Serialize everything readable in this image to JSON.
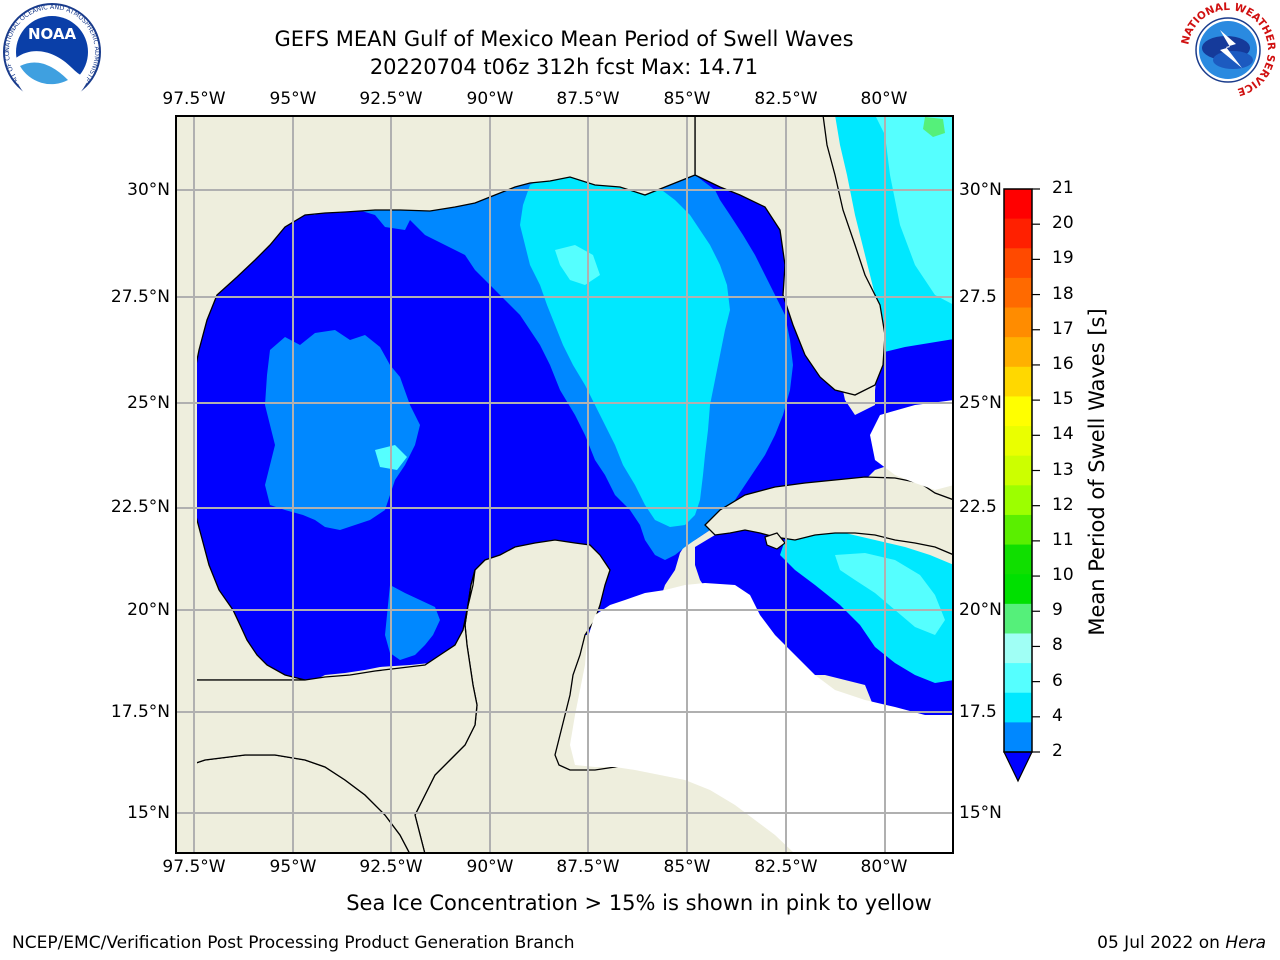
{
  "title_line1": "GEFS MEAN Gulf of Mexico Mean Period of Swell Waves",
  "title_line2": "20220704 t06z 312h fcst   Max: 14.71",
  "lon_ticks": [
    "97.5°W",
    "95°W",
    "92.5°W",
    "90°W",
    "87.5°W",
    "85°W",
    "82.5°W",
    "80°W"
  ],
  "lat_ticks": [
    "30°N",
    "27.5°N",
    "25°N",
    "22.5°N",
    "20°N",
    "17.5°N",
    "15°N"
  ],
  "lat_ticks_right": [
    "30°N",
    "27.5",
    "25°N",
    "22.5",
    "20°N",
    "17.5",
    "15°N"
  ],
  "colorbar": {
    "label": "Mean Period of Swell Waves [s]",
    "ticks": [
      "21",
      "20",
      "19",
      "18",
      "17",
      "16",
      "15",
      "14",
      "13",
      "12",
      "11",
      "10",
      "9",
      "8",
      "6",
      "4",
      "2"
    ],
    "colors": [
      "#ff0000",
      "#ff2000",
      "#ff4a00",
      "#ff6a00",
      "#ff8c00",
      "#ffb000",
      "#ffd800",
      "#ffff00",
      "#eaff00",
      "#ccff00",
      "#9cff00",
      "#5aef00",
      "#10df00",
      "#00e000",
      "#55f07a",
      "#a0fff5",
      "#55ffff",
      "#00e8ff",
      "#0088ff"
    ],
    "extend_color": "#0000ff"
  },
  "caption": "Sea Ice Concentration > 15% is shown in pink to yellow",
  "footer_left": "NCEP/EMC/Verification Post Processing Product Generation Branch",
  "footer_date": "05 Jul 2022 on",
  "footer_host": "Hera",
  "logos": {
    "noaa_text": "NOAA",
    "noaa_ring": "NATIONAL OCEANIC AND ATMOSPHERIC ADMINISTRATION · U.S. DEPARTMENT OF COMMERCE",
    "nws_ring": "NATIONAL WEATHER SERVICE"
  },
  "colors": {
    "land": "#eeeedd",
    "ocean_blue": "#0000ff",
    "ocean_mid": "#0088ff",
    "ocean_cyan": "#00e8ff",
    "ocean_light": "#55ffff",
    "grid": "#b0b0b0"
  }
}
